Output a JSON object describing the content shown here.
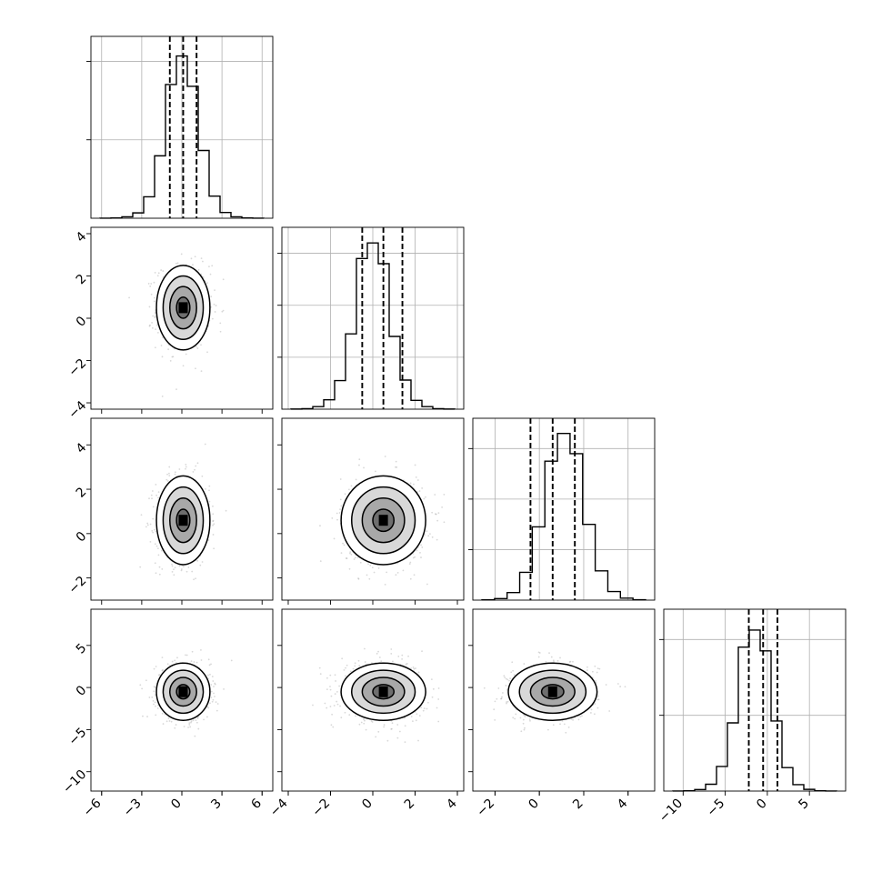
{
  "chart_data": {
    "type": "corner",
    "n_params": 4,
    "params": [
      {
        "name": "",
        "range": [
          -6.8,
          6.8
        ],
        "ticks": [
          -6,
          -3,
          0,
          3,
          6
        ],
        "tick_labels": [
          "−6",
          "−3",
          "0",
          "3",
          "6"
        ],
        "quantiles": [
          -0.9,
          0.1,
          1.1
        ],
        "hist_counts": [
          2,
          8,
          40,
          150,
          600,
          1750,
          3750,
          4550,
          3700,
          1900,
          620,
          160,
          40,
          8,
          2
        ],
        "hist_ymax": 5100,
        "hist_yticks": [
          2200,
          4400
        ]
      },
      {
        "name": "",
        "range": [
          -4.3,
          4.3
        ],
        "ticks": [
          -4,
          -2,
          0,
          2,
          4
        ],
        "tick_labels": [
          "−4",
          "−2",
          "0",
          "2",
          "4"
        ],
        "quantiles": [
          -0.5,
          0.5,
          1.4
        ],
        "hist_counts": [
          2,
          10,
          50,
          180,
          550,
          1450,
          2900,
          3200,
          2800,
          1400,
          560,
          170,
          50,
          10,
          2
        ],
        "hist_ymax": 3500,
        "hist_yticks": [
          1000,
          2000,
          3000
        ]
      },
      {
        "name": "",
        "range": [
          -3.0,
          5.2
        ],
        "ticks": [
          -2,
          0,
          2,
          4
        ],
        "tick_labels": [
          "−2",
          "0",
          "2",
          "4"
        ],
        "quantiles": [
          -0.4,
          0.6,
          1.6
        ],
        "hist_counts": [
          5,
          30,
          150,
          550,
          1450,
          2750,
          3300,
          2900,
          1500,
          580,
          170,
          40,
          8
        ],
        "hist_ymax": 3600,
        "hist_yticks": [
          1000,
          2000,
          3000
        ]
      },
      {
        "name": "",
        "range": [
          -12.3,
          9.3
        ],
        "ticks": [
          -10,
          -5,
          0,
          5
        ],
        "tick_labels": [
          "−10",
          "−5",
          "0",
          "5"
        ],
        "quantiles": [
          -2.2,
          -0.5,
          1.2
        ],
        "hist_counts": [
          2,
          8,
          40,
          180,
          650,
          1800,
          3800,
          4250,
          3700,
          1850,
          620,
          170,
          45,
          8,
          2
        ],
        "hist_ymax": 4800,
        "hist_yticks": [
          2000,
          4000
        ]
      }
    ],
    "means": [
      0.1,
      0.5,
      0.6,
      -0.5
    ],
    "sigmas": [
      1.0,
      1.0,
      1.0,
      1.7
    ],
    "contour_levels_sigma": [
      0.5,
      1.0,
      1.5,
      2.0
    ],
    "grid": true,
    "quantile_style": "dashed"
  }
}
